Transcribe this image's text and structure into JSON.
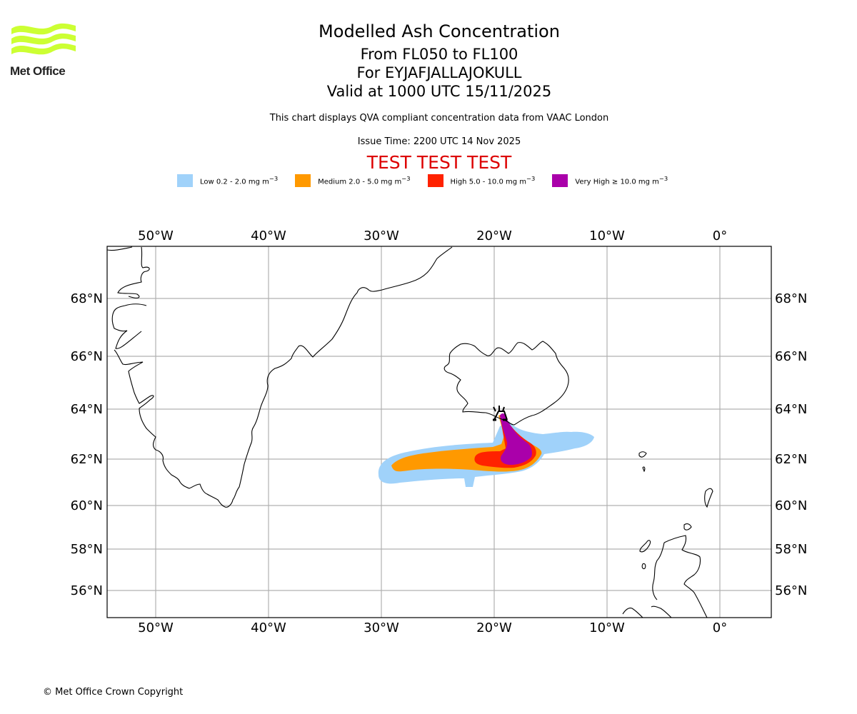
{
  "logo": {
    "text": "Met Office",
    "color": "#ccff33"
  },
  "header": {
    "title": "Modelled Ash Concentration",
    "levels": "From FL050 to FL100",
    "volcano": "For EYJAFJALLAJOKULL",
    "valid": "Valid at 1000 UTC 15/11/2025",
    "subtitle": "This chart displays QVA compliant concentration data from VAAC London",
    "issue_time": "Issue Time: 2200 UTC 14 Nov 2025",
    "test_banner": "TEST TEST TEST"
  },
  "legend": [
    {
      "label": "Low 0.2 - 2.0 mg m",
      "sup": "−3",
      "color": "#a0d2fa"
    },
    {
      "label": "Medium 2.0 - 5.0 mg m",
      "sup": "−3",
      "color": "#ff9900"
    },
    {
      "label": "High 5.0 - 10.0 mg m",
      "sup": "−3",
      "color": "#ff2200"
    },
    {
      "label": "Very High ≥ 10.0 mg m",
      "sup": "−3",
      "color": "#aa00aa"
    }
  ],
  "map": {
    "lon_ticks": [
      "50°W",
      "40°W",
      "30°W",
      "20°W",
      "10°W",
      "0°"
    ],
    "lat_ticks": [
      "68°N",
      "66°N",
      "64°N",
      "62°N",
      "60°N",
      "58°N",
      "56°N"
    ],
    "volcano_icon": "volcano-icon"
  },
  "footer": {
    "copyright": "© Met Office Crown Copyright"
  }
}
